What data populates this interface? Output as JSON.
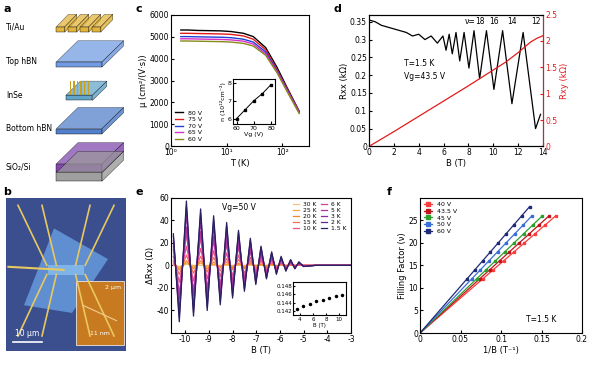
{
  "panel_labels": [
    "a",
    "b",
    "c",
    "d",
    "e",
    "f"
  ],
  "schematic": {
    "layers": [
      "Ti/Au",
      "Top hBN",
      "InSe",
      "Bottom hBN",
      "SiO₂/Si"
    ]
  },
  "optical_image": {
    "scale_bar": "10 μm",
    "inset_scale_bar": "2 μm",
    "inset_height": "11 nm"
  },
  "chart_data": [
    {
      "type": "line",
      "xlabel": "T (K)",
      "ylabel": "μ (cm²/(V·s))",
      "log": "x",
      "xlim": [
        1,
        300
      ],
      "xticks": [
        {
          "value": 1,
          "label": "10⁰"
        },
        {
          "value": 10,
          "label": "10¹"
        },
        {
          "value": 100,
          "label": "10²"
        }
      ],
      "ylim": [
        0,
        6000
      ],
      "yticks": [
        0,
        1000,
        2000,
        3000,
        4000,
        5000,
        6000
      ],
      "legend": "lower left",
      "x": [
        1.5,
        2,
        3,
        5,
        8,
        12,
        20,
        30,
        50,
        80,
        120,
        200
      ],
      "series": [
        {
          "name": "80 V",
          "color": "#000000",
          "values": [
            5300,
            5300,
            5280,
            5270,
            5260,
            5230,
            5150,
            5000,
            4500,
            3600,
            2700,
            1600
          ]
        },
        {
          "name": "75 V",
          "color": "#e41a1c",
          "values": [
            5150,
            5150,
            5140,
            5130,
            5120,
            5100,
            5030,
            4880,
            4400,
            3500,
            2650,
            1580
          ]
        },
        {
          "name": "70 V",
          "color": "#1f3fd6",
          "values": [
            5000,
            5000,
            4990,
            4980,
            4970,
            4950,
            4880,
            4750,
            4300,
            3450,
            2600,
            1550
          ]
        },
        {
          "name": "65 V",
          "color": "#d62fc8",
          "values": [
            4900,
            4900,
            4890,
            4880,
            4870,
            4850,
            4790,
            4660,
            4220,
            3400,
            2560,
            1530
          ]
        },
        {
          "name": "60 V",
          "color": "#8a8a1a",
          "values": [
            4800,
            4800,
            4790,
            4780,
            4770,
            4750,
            4690,
            4570,
            4150,
            3350,
            2520,
            1500
          ]
        }
      ]
    },
    {
      "type": "line",
      "marker": "square",
      "xlabel": "Vg (V)",
      "ylabel": "n (10¹²cm⁻²)",
      "color": "#000000",
      "x": [
        60,
        65,
        70,
        75,
        80
      ],
      "values": [
        6.0,
        6.5,
        7.0,
        7.4,
        7.9
      ],
      "xlim": [
        58,
        82
      ],
      "xticks": [
        60,
        70,
        80
      ],
      "ylim": [
        5.7,
        8.2
      ],
      "yticks": [
        6,
        7,
        8
      ]
    },
    {
      "type": "line",
      "xlabel": "B (T)",
      "ylabel": "Rxx (kΩ)",
      "y2label": "Rxy (kΩ)",
      "xlim": [
        0,
        14
      ],
      "xticks": [
        0,
        2,
        4,
        6,
        8,
        10,
        12,
        14
      ],
      "ylim": [
        0,
        0.37
      ],
      "yticks": [
        0,
        0.05,
        0.1,
        0.15,
        0.2,
        0.25,
        0.3,
        0.35
      ],
      "y2lim": [
        0,
        2.5
      ],
      "y2ticks": [
        0,
        0.5,
        1,
        1.5,
        2,
        2.5
      ],
      "notes": [
        "T=1.5 K",
        "Vg=43.5 V"
      ],
      "nu_labels": [
        {
          "text": "ν=",
          "x": 8.1
        },
        {
          "text": "18",
          "x": 8.9
        },
        {
          "text": "16",
          "x": 10.05
        },
        {
          "text": "14",
          "x": 11.5
        },
        {
          "text": "12",
          "x": 13.4
        }
      ],
      "series": [
        {
          "color": "#000000",
          "x": [
            0,
            0.5,
            1,
            1.5,
            2,
            2.5,
            3,
            3.5,
            4,
            4.5,
            5,
            5.5,
            5.95,
            6.2,
            6.45,
            6.7,
            7.0,
            7.3,
            7.65,
            8.04,
            8.45,
            8.9,
            9.45,
            10.05,
            10.75,
            11.5,
            12.4,
            13.4,
            13.8
          ],
          "values": [
            0.355,
            0.35,
            0.34,
            0.335,
            0.33,
            0.325,
            0.32,
            0.31,
            0.315,
            0.3,
            0.31,
            0.29,
            0.31,
            0.27,
            0.315,
            0.26,
            0.32,
            0.24,
            0.32,
            0.22,
            0.325,
            0.19,
            0.325,
            0.16,
            0.325,
            0.12,
            0.32,
            0.05,
            0.09
          ]
        },
        {
          "color": "#e41a1c",
          "axis": "y2",
          "x": [
            0,
            2,
            4,
            6,
            8,
            10,
            11,
            12,
            13,
            13.5,
            14
          ],
          "values": [
            0,
            0.28,
            0.57,
            0.86,
            1.15,
            1.45,
            1.6,
            1.78,
            1.98,
            2.05,
            2.1
          ]
        }
      ]
    },
    {
      "type": "line",
      "xlabel": "B (T)",
      "ylabel": "ΔRxx (Ω)",
      "legend": "upper right",
      "notes": [
        "Vg=50 V"
      ],
      "xlim": [
        -10.6,
        -3
      ],
      "xticks": [
        -10,
        -9,
        -8,
        -7,
        -6,
        -5,
        -4,
        -3
      ],
      "ylim": [
        -60,
        60
      ],
      "yticks": [
        -40,
        -20,
        0,
        20,
        40,
        60
      ],
      "x": [
        -10.5,
        -10.25,
        -9.95,
        -9.65,
        -9.35,
        -9.07,
        -8.8,
        -8.52,
        -8.25,
        -8.0,
        -7.75,
        -7.5,
        -7.25,
        -7.02,
        -6.8,
        -6.57,
        -6.35,
        -6.15,
        -5.95,
        -5.75,
        -5.55,
        -5.37,
        -5.2,
        -5.0,
        -4.5,
        -4.0,
        -3.5,
        -3.0
      ],
      "series": [
        {
          "name": "30 K",
          "color": "#f4c27a",
          "values": [
            0,
            -1,
            1,
            0,
            0,
            0,
            0,
            0,
            0,
            0,
            0,
            0,
            0,
            0,
            0,
            0,
            0,
            0,
            0,
            0,
            0,
            0,
            0,
            0,
            0,
            0,
            0,
            0
          ]
        },
        {
          "name": "25 K",
          "color": "#f2a93b",
          "values": [
            1,
            -2,
            2,
            -1,
            2,
            -1,
            1,
            -1,
            1,
            -1,
            1,
            -1,
            1,
            0,
            0,
            0,
            0,
            0,
            0,
            0,
            0,
            0,
            0,
            0,
            0,
            0,
            0,
            0
          ]
        },
        {
          "name": "20 K",
          "color": "#f08a24",
          "values": [
            2,
            -4,
            4,
            -3,
            4,
            -3,
            3,
            -2,
            3,
            -2,
            2,
            -2,
            2,
            -1,
            1,
            -1,
            1,
            -1,
            1,
            0,
            0,
            0,
            0,
            0,
            0,
            0,
            0,
            0
          ]
        },
        {
          "name": "15 K",
          "color": "#f26b5b",
          "values": [
            4,
            -8,
            9,
            -7,
            8,
            -6,
            7,
            -5,
            6,
            -4,
            5,
            -3,
            4,
            -3,
            3,
            -2,
            2,
            -1,
            1,
            -1,
            1,
            0,
            0,
            0,
            0,
            0,
            0,
            0
          ]
        },
        {
          "name": "10 K",
          "color": "#e8508a",
          "values": [
            8,
            -15,
            17,
            -14,
            15,
            -12,
            13,
            -10,
            11,
            -9,
            9,
            -7,
            7,
            -5,
            5,
            -4,
            4,
            -2,
            2,
            -1,
            1,
            -1,
            1,
            0,
            0,
            0,
            0,
            0
          ]
        },
        {
          "name": "6 K",
          "color": "#d13fa0",
          "values": [
            14,
            -25,
            28,
            -22,
            25,
            -20,
            22,
            -17,
            19,
            -14,
            16,
            -11,
            12,
            -8,
            8,
            -6,
            6,
            -4,
            4,
            -2,
            2,
            -1,
            1,
            0,
            0,
            0,
            0,
            0
          ]
        },
        {
          "name": "5 K",
          "color": "#b0369e",
          "values": [
            17,
            -30,
            34,
            -27,
            30,
            -24,
            26,
            -21,
            23,
            -17,
            19,
            -14,
            14,
            -10,
            10,
            -7,
            7,
            -5,
            5,
            -3,
            3,
            -2,
            2,
            -1,
            0,
            0,
            0,
            0
          ]
        },
        {
          "name": "3 K",
          "color": "#8a2d9a",
          "values": [
            22,
            -40,
            46,
            -36,
            40,
            -32,
            35,
            -28,
            30,
            -23,
            25,
            -18,
            19,
            -14,
            14,
            -10,
            10,
            -6,
            6,
            -4,
            4,
            -2,
            2,
            -1,
            0,
            0,
            0,
            0
          ]
        },
        {
          "name": "2 K",
          "color": "#5b2a8a",
          "values": [
            26,
            -46,
            52,
            -41,
            46,
            -37,
            40,
            -32,
            35,
            -27,
            29,
            -21,
            22,
            -16,
            16,
            -11,
            11,
            -7,
            7,
            -5,
            5,
            -3,
            3,
            -1,
            0,
            0,
            0,
            0
          ]
        },
        {
          "name": "1.5 K",
          "color": "#2a2060",
          "values": [
            28,
            -50,
            57,
            -45,
            50,
            -40,
            44,
            -35,
            38,
            -29,
            31,
            -23,
            24,
            -17,
            17,
            -12,
            12,
            -8,
            8,
            -5,
            5,
            -3,
            3,
            -1,
            0,
            0,
            0,
            0
          ]
        }
      ]
    },
    {
      "type": "scatter",
      "marker": "circle",
      "xlabel": "B (T)",
      "color": "#000000",
      "x": [
        3.5,
        4.5,
        5.5,
        6.5,
        7.5,
        8.5,
        9.5,
        10.5
      ],
      "values": [
        0.1425,
        0.1432,
        0.1438,
        0.1443,
        0.1447,
        0.1452,
        0.1455,
        0.1458
      ],
      "xlim": [
        3,
        11
      ],
      "xticks": [
        4,
        6,
        8,
        10
      ],
      "ylim": [
        0.141,
        0.149
      ],
      "yticks": [
        0.142,
        0.144,
        0.146,
        0.148
      ]
    },
    {
      "type": "scatter",
      "marker": "square",
      "xlabel": "1/B (T⁻¹)",
      "ylabel": "Filling Factor (ν)",
      "legend": "upper left",
      "notes": [
        "T=1.5 K"
      ],
      "xlim": [
        0,
        0.2
      ],
      "xticks": [
        0,
        0.05,
        0.1,
        0.15,
        0.2
      ],
      "ylim": [
        0,
        30
      ],
      "yticks": [
        0,
        5,
        10,
        15,
        20,
        25
      ],
      "series": [
        {
          "name": "40 V",
          "color": "#ff3b3b",
          "x": [
            0.0774,
            0.0903,
            0.1032,
            0.1161,
            0.129,
            0.1419,
            0.1548,
            0.1677
          ],
          "values": [
            12,
            14,
            16,
            18,
            20,
            22,
            24,
            26
          ],
          "fit": {
            "x": [
              0,
              0.1677
            ],
            "values": [
              0,
              26
            ]
          }
        },
        {
          "name": "43.5 V",
          "color": "#c0141c",
          "x": [
            0.0736,
            0.0859,
            0.0982,
            0.1104,
            0.1227,
            0.135,
            0.1472,
            0.1595
          ],
          "values": [
            12,
            14,
            16,
            18,
            20,
            22,
            24,
            26
          ],
          "fit": {
            "x": [
              0,
              0.1595
            ],
            "values": [
              0,
              26
            ]
          }
        },
        {
          "name": "45 V",
          "color": "#2ca02c",
          "x": [
            0.0698,
            0.0814,
            0.093,
            0.1047,
            0.1163,
            0.1279,
            0.1395,
            0.1512
          ],
          "values": [
            12,
            14,
            16,
            18,
            20,
            22,
            24,
            26
          ],
          "fit": {
            "x": [
              0,
              0.1512
            ],
            "values": [
              0,
              26
            ]
          }
        },
        {
          "name": "50 V",
          "color": "#3a6fd8",
          "x": [
            0.0638,
            0.0745,
            0.0851,
            0.0957,
            0.1064,
            0.117,
            0.1277,
            0.1383
          ],
          "values": [
            12,
            14,
            16,
            18,
            20,
            22,
            24,
            26
          ],
          "fit": {
            "x": [
              0,
              0.1383
            ],
            "values": [
              0,
              26
            ]
          }
        },
        {
          "name": "60 V",
          "color": "#1f2a7a",
          "x": [
            0.058,
            0.0676,
            0.0773,
            0.087,
            0.0966,
            0.1063,
            0.1159,
            0.1256,
            0.1353
          ],
          "values": [
            12,
            14,
            16,
            18,
            20,
            22,
            24,
            26,
            28
          ],
          "fit": {
            "x": [
              0,
              0.1353
            ],
            "values": [
              0,
              28
            ]
          }
        }
      ]
    }
  ]
}
